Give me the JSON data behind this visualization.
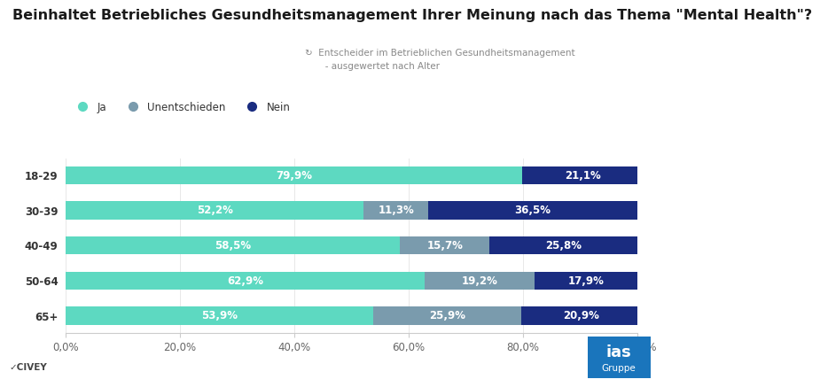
{
  "title": "Beinhaltet Betriebliches Gesundheitsmanagement Ihrer Meinung nach das Thema \"Mental Health\"?",
  "subtitle_line1": "Entscheider im Betrieblichen Gesundheitsmanagement",
  "subtitle_line2": "- ausgewertet nach Alter",
  "categories": [
    "18-29",
    "30-39",
    "40-49",
    "50-64",
    "65+"
  ],
  "ja": [
    79.9,
    52.2,
    58.5,
    62.9,
    53.9
  ],
  "unentschieden": [
    0.0,
    11.3,
    15.7,
    19.2,
    25.9
  ],
  "nein": [
    21.1,
    36.5,
    25.8,
    17.9,
    20.9
  ],
  "ja_label": [
    "79,9%",
    "52,2%",
    "58,5%",
    "62,9%",
    "53,9%"
  ],
  "unent_label": [
    "",
    "11,3%",
    "15,7%",
    "19,2%",
    "25,9%"
  ],
  "nein_label": [
    "21,1%",
    "36,5%",
    "25,8%",
    "17,9%",
    "20,9%"
  ],
  "color_ja": "#5DD9C1",
  "color_unent": "#7A9BAD",
  "color_nein": "#1A2C80",
  "legend_ja": "Ja",
  "legend_unent": "Unentschieden",
  "legend_nein": "Nein",
  "xlabel_ticks": [
    0,
    20,
    40,
    60,
    80,
    100
  ],
  "xlabel_labels": [
    "0,0%",
    "20,0%",
    "40,0%",
    "60,0%",
    "80,0%",
    "100,0%"
  ],
  "bg_color": "#ffffff",
  "bar_height": 0.52,
  "title_fontsize": 11.5,
  "subtitle_fontsize": 7.5,
  "label_fontsize": 8.5,
  "legend_fontsize": 8.5,
  "tick_fontsize": 8.5,
  "civey_text": "✓CIVEY",
  "ias_line1": "ias",
  "ias_line2": "Gruppe",
  "ias_bg": "#1A75BC"
}
